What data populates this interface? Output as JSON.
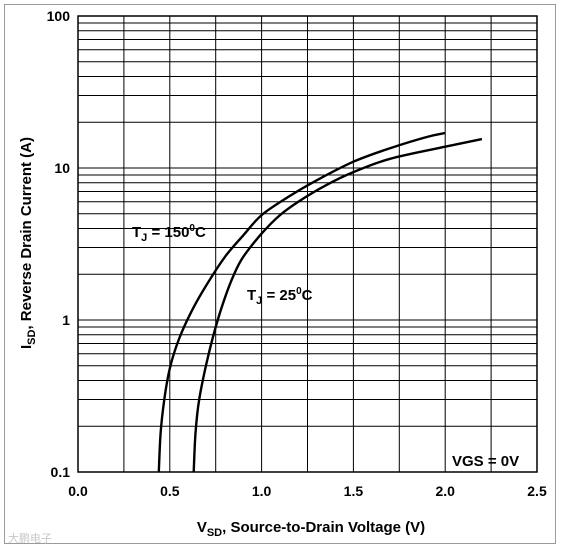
{
  "chart_data": {
    "type": "line",
    "xlabel_main": "V",
    "xlabel_sub": "SD",
    "xlabel_rest": ", Source-to-Drain Voltage (V)",
    "ylabel_main": "I",
    "ylabel_sub": "SD",
    "ylabel_rest": ", Reverse Drain Current (A)",
    "xlim": [
      0,
      2.5
    ],
    "ylim": [
      0.1,
      100
    ],
    "yscale": "log",
    "grid": true,
    "x_ticks": [
      "0.0",
      "0.5",
      "1.0",
      "1.5",
      "2.0",
      "2.5"
    ],
    "x_tick_values": [
      0,
      0.5,
      1.0,
      1.5,
      2.0,
      2.5
    ],
    "y_ticks": [
      "0.1",
      "1",
      "10",
      "100"
    ],
    "y_tick_values": [
      0.1,
      1,
      10,
      100
    ],
    "series": [
      {
        "label_main": "T",
        "label_sub": "J",
        "label_rest": " = 150",
        "label_sup": "0",
        "label_unit": "C",
        "x": [
          0.44,
          0.45,
          0.47,
          0.5,
          0.55,
          0.62,
          0.7,
          0.8,
          0.9,
          1.0,
          1.15,
          1.3,
          1.5,
          1.7,
          1.9,
          2.0
        ],
        "y": [
          0.1,
          0.18,
          0.3,
          0.48,
          0.75,
          1.15,
          1.7,
          2.6,
          3.6,
          4.9,
          6.5,
          8.3,
          11.0,
          13.5,
          16.0,
          17.0
        ]
      },
      {
        "label_main": "T",
        "label_sub": "J",
        "label_rest": " = 25",
        "label_sup": "0",
        "label_unit": "C",
        "x": [
          0.63,
          0.64,
          0.66,
          0.7,
          0.75,
          0.8,
          0.85,
          0.9,
          1.0,
          1.1,
          1.2,
          1.35,
          1.5,
          1.7,
          2.0,
          2.2
        ],
        "y": [
          0.1,
          0.18,
          0.3,
          0.52,
          0.9,
          1.4,
          2.0,
          2.6,
          3.7,
          4.9,
          6.0,
          7.7,
          9.4,
          11.5,
          13.8,
          15.5
        ]
      }
    ],
    "annotation": "VGS = 0V"
  },
  "watermark": "大鹏电子"
}
